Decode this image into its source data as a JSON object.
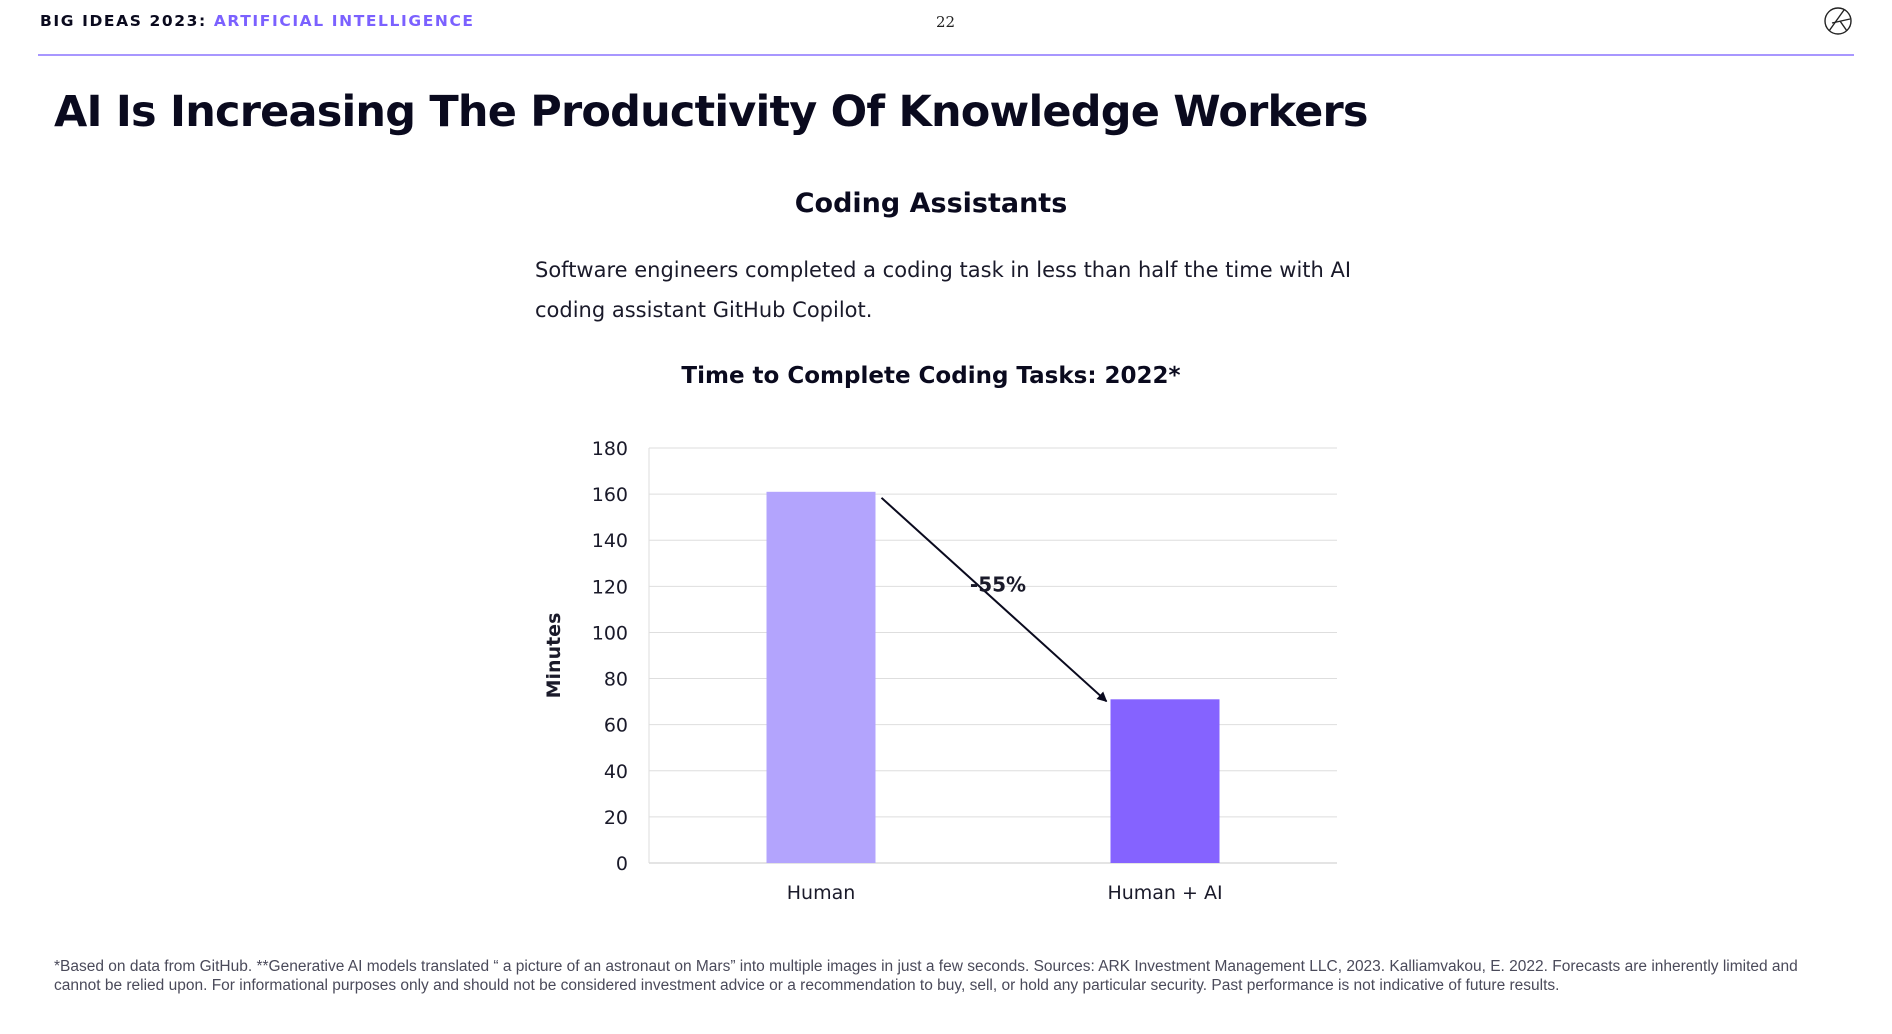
{
  "header": {
    "series_label": "BIG IDEAS 2023: ",
    "topic_label": "ARTIFICIAL INTELLIGENCE",
    "page_number": "22",
    "logo_icon": "ark-logo-icon"
  },
  "title": "AI Is Increasing The Productivity Of Knowledge Workers",
  "section": {
    "heading": "Coding Assistants",
    "description": "Software engineers completed a coding task in less than half the time with AI coding assistant GitHub Copilot."
  },
  "chart_data": {
    "type": "bar",
    "title": "Time to Complete Coding Tasks: 2022*",
    "xlabel": "",
    "ylabel": "Minutes",
    "categories": [
      "Human",
      "Human + AI"
    ],
    "values": [
      161,
      71
    ],
    "ylim": [
      0,
      180
    ],
    "yticks": [
      0,
      20,
      40,
      60,
      80,
      100,
      120,
      140,
      160,
      180
    ],
    "bar_colors": [
      "#b3a4fd",
      "#8563ff"
    ],
    "grid": true,
    "legend": "none",
    "annotation": "-55%"
  },
  "footnote": "*Based on data from GitHub. **Generative AI models translated “ a picture of an astronaut on Mars” into multiple images in just a few seconds. Sources: ARK Investment Management LLC, 2023. Kalliamvakou, E. 2022. Forecasts are inherently limited and cannot be relied upon. For informational purposes only and should not be considered investment advice or a recommendation to buy, sell, or hold any particular security. Past performance is not indicative of future results."
}
